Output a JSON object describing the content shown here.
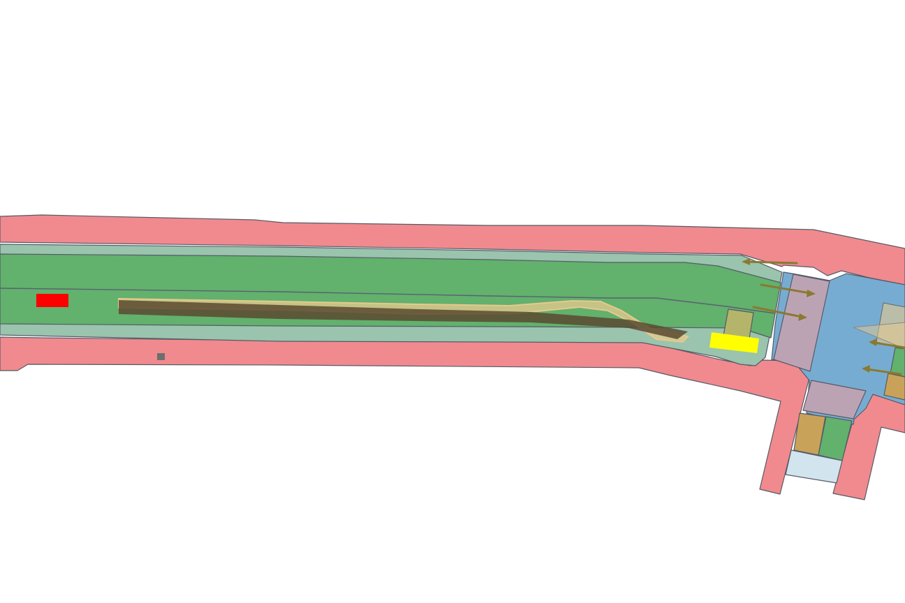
{
  "map": {
    "colors": {
      "background": "#ffffff",
      "sidewalk": "#f08a8e",
      "road_shoulder": "#9ac4ad",
      "lane": "#62b16d",
      "intersection": "#77acd2",
      "crosswalk": "#bca3b4",
      "parking": "#c9a25a",
      "bike_pad": "#d2e4ee",
      "ego_vehicle": "#ffff00",
      "other_vehicle": "#ff0000",
      "static_object": "#6e6e6e",
      "route_band": "#e7c98d",
      "trajectory": "#5a4a30",
      "traffic_arrow": "#8a7a30",
      "stop_zone": "#b4b56a"
    },
    "icons": {
      "ego_vehicle": "ego-vehicle-marker",
      "other_vehicle": "agent-vehicle-marker",
      "static_object": "static-object-marker",
      "lane_arrows": "lane-direction-arrow"
    }
  }
}
